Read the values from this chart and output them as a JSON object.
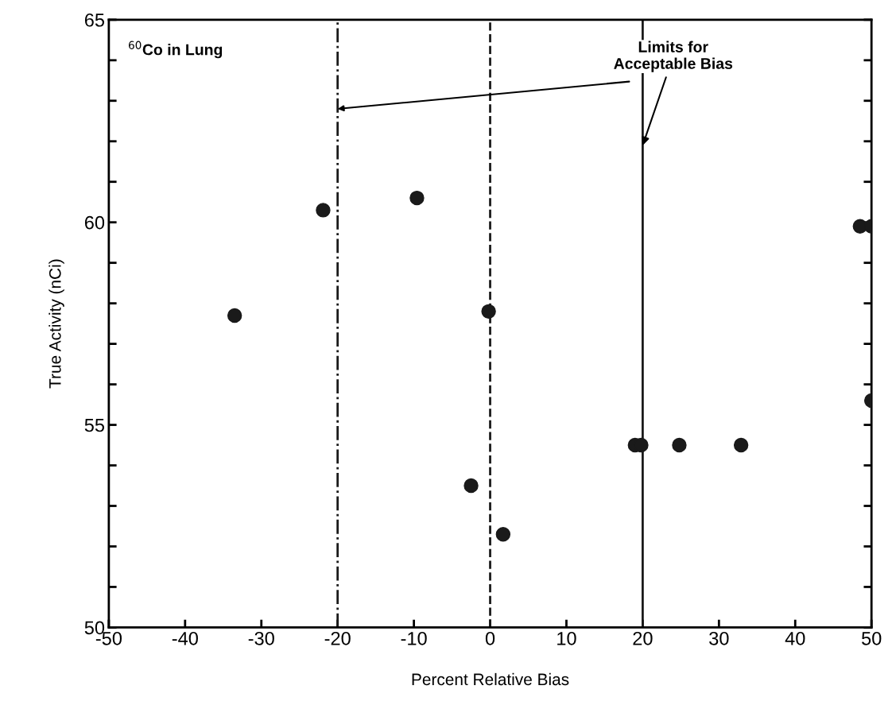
{
  "chart_data": {
    "type": "scatter",
    "xlabel": "Percent Relative Bias",
    "ylabel": "True Activity (nCi)",
    "annotations": [
      "$^{60}$Co in Lung",
      {
        "text": "Limits for\nAcceptable Bias",
        "x": 20,
        "y": 61.9
      }
    ],
    "series": [
      {
        "color": "#1a1a1a",
        "x": [
          -33.5,
          -21.9,
          -9.6,
          -0.2,
          -2.5,
          1.7,
          19.0,
          19.8,
          24.8,
          32.9,
          48.5,
          50,
          50
        ],
        "values": [
          57.7,
          60.3,
          60.6,
          57.8,
          53.5,
          52.3,
          54.5,
          54.5,
          54.5,
          54.5,
          59.9,
          59.9,
          55.6
        ]
      }
    ],
    "marker": "circle",
    "grid": false,
    "legend": false,
    "xlim": [
      -50,
      50
    ],
    "xticks": [
      -50,
      -40,
      -30,
      -20,
      -10,
      0,
      10,
      20,
      30,
      40,
      50
    ],
    "ylim": [
      50,
      65
    ],
    "yticks": [
      50,
      {
        "value": 51,
        "label": null
      },
      {
        "value": 52,
        "label": null
      },
      {
        "value": 53,
        "label": null
      },
      {
        "value": 54,
        "label": null
      },
      55,
      {
        "value": 56,
        "label": null
      },
      {
        "value": 57,
        "label": null
      },
      {
        "value": 58,
        "label": null
      },
      {
        "value": 59,
        "label": null
      },
      60,
      {
        "value": 61,
        "label": null
      },
      {
        "value": 62,
        "label": null
      },
      {
        "value": 63,
        "label": null
      },
      {
        "value": 64,
        "label": null
      },
      65
    ],
    "ref_lines": [
      {
        "axis": "x",
        "value": -20,
        "line_style": "dashdot",
        "color": "#1a1a1a"
      },
      {
        "axis": "x",
        "value": 0,
        "line_style": "dashed",
        "color": "#1a1a1a"
      },
      {
        "axis": "x",
        "value": 20,
        "line_style": "solid",
        "color": "#1a1a1a"
      }
    ]
  }
}
